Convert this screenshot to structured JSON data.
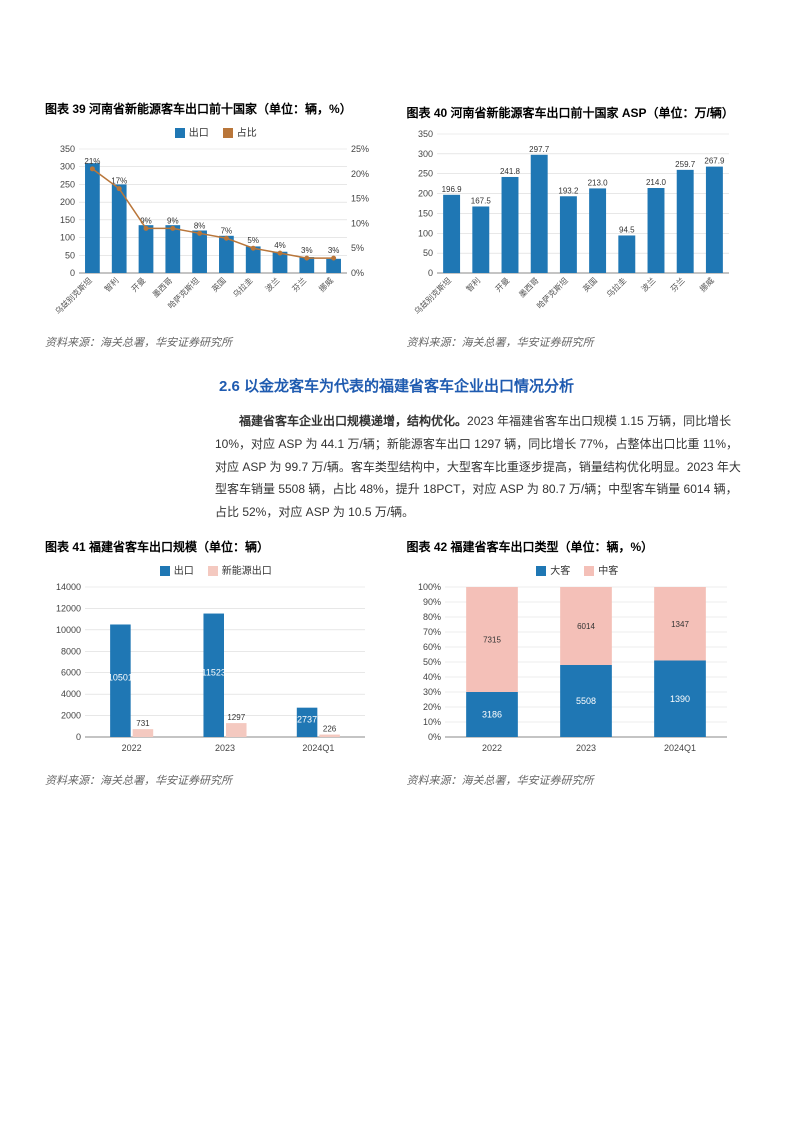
{
  "chart39": {
    "title": "图表 39  河南省新能源客车出口前十国家（单位：辆，%）",
    "legend_export": "出口",
    "legend_share": "占比",
    "categories": [
      "乌兹别克斯坦",
      "智利",
      "开曼",
      "墨西哥",
      "哈萨克斯坦",
      "英国",
      "乌拉圭",
      "波兰",
      "芬兰",
      "挪威"
    ],
    "bar_values": [
      310,
      250,
      135,
      135,
      120,
      105,
      75,
      60,
      45,
      40
    ],
    "line_values": [
      21,
      17,
      9,
      9,
      8,
      7,
      5,
      4,
      3,
      3
    ],
    "line_labels": [
      "21%",
      "17%",
      "9%",
      "9%",
      "8%",
      "7%",
      "5%",
      "4%",
      "3%",
      "3%"
    ],
    "yleft_min": 0,
    "yleft_max": 350,
    "yleft_step": 50,
    "yright_min": 0,
    "yright_max": 25,
    "yright_step": 5,
    "bar_color": "#1f77b4",
    "line_color": "#b9763a",
    "grid_color": "#d9d9d9",
    "source": "资料来源：海关总署，华安证券研究所"
  },
  "chart40": {
    "title": "图表 40 河南省新能源客车出口前十国家 ASP（单位：万/辆）",
    "categories": [
      "乌兹别克斯坦",
      "智利",
      "开曼",
      "墨西哥",
      "哈萨克斯坦",
      "英国",
      "乌拉圭",
      "波兰",
      "芬兰",
      "挪威"
    ],
    "values": [
      196.9,
      167.5,
      241.8,
      297.7,
      193.2,
      213.0,
      94.5,
      214.0,
      259.7,
      267.9
    ],
    "value_labels": [
      "196.9",
      "167.5",
      "241.8",
      "297.7",
      "193.2",
      "213.0",
      "94.5",
      "214.0",
      "259.7",
      "267.9"
    ],
    "y_min": 0,
    "y_max": 350,
    "y_step": 50,
    "bar_color": "#1f77b4",
    "grid_color": "#d9d9d9",
    "source": "资料来源：海关总署，华安证券研究所"
  },
  "sectionTitle": "2.6  以金龙客车为代表的福建省客车企业出口情况分析",
  "paragraph": {
    "lead": "福建省客车企业出口规模递增，结构优化。",
    "body": "2023 年福建省客车出口规模 1.15 万辆，同比增长 10%，对应 ASP 为 44.1 万/辆；新能源客车出口 1297 辆，同比增长 77%，占整体出口比重 11%，对应 ASP 为 99.7 万/辆。客车类型结构中，大型客车比重逐步提高，销量结构优化明显。2023 年大型客车销量 5508 辆，占比 48%，提升 18PCT，对应 ASP 为 80.7 万/辆；中型客车销量 6014 辆，占比 52%，对应 ASP 为 10.5 万/辆。"
  },
  "chart41": {
    "title": "图表 41  福建省客车出口规模（单位：辆）",
    "legend_export": "出口",
    "legend_nev": "新能源出口",
    "categories": [
      "2022",
      "2023",
      "2024Q1"
    ],
    "export_values": [
      10501,
      11523,
      2737
    ],
    "nev_values": [
      731,
      1297,
      226
    ],
    "y_min": 0,
    "y_max": 14000,
    "y_step": 2000,
    "bar_color": "#1f77b4",
    "bar_color2": "#f4c9c0",
    "grid_color": "#d9d9d9",
    "source": "资料来源：海关总署，华安证券研究所"
  },
  "chart42": {
    "title": "图表 42 福建省客车出口类型（单位：辆，%）",
    "legend_large": "大客",
    "legend_mid": "中客",
    "categories": [
      "2022",
      "2023",
      "2024Q1"
    ],
    "large_values": [
      3186,
      5508,
      1390
    ],
    "mid_values": [
      7315,
      6014,
      1347
    ],
    "large_pct": [
      30,
      48,
      51
    ],
    "mid_pct": [
      70,
      52,
      49
    ],
    "y_min": 0,
    "y_max": 100,
    "y_step": 10,
    "large_color": "#1f77b4",
    "mid_color": "#f4c0b8",
    "grid_color": "#d9d9d9",
    "source": "资料来源：海关总署，华安证券研究所"
  }
}
